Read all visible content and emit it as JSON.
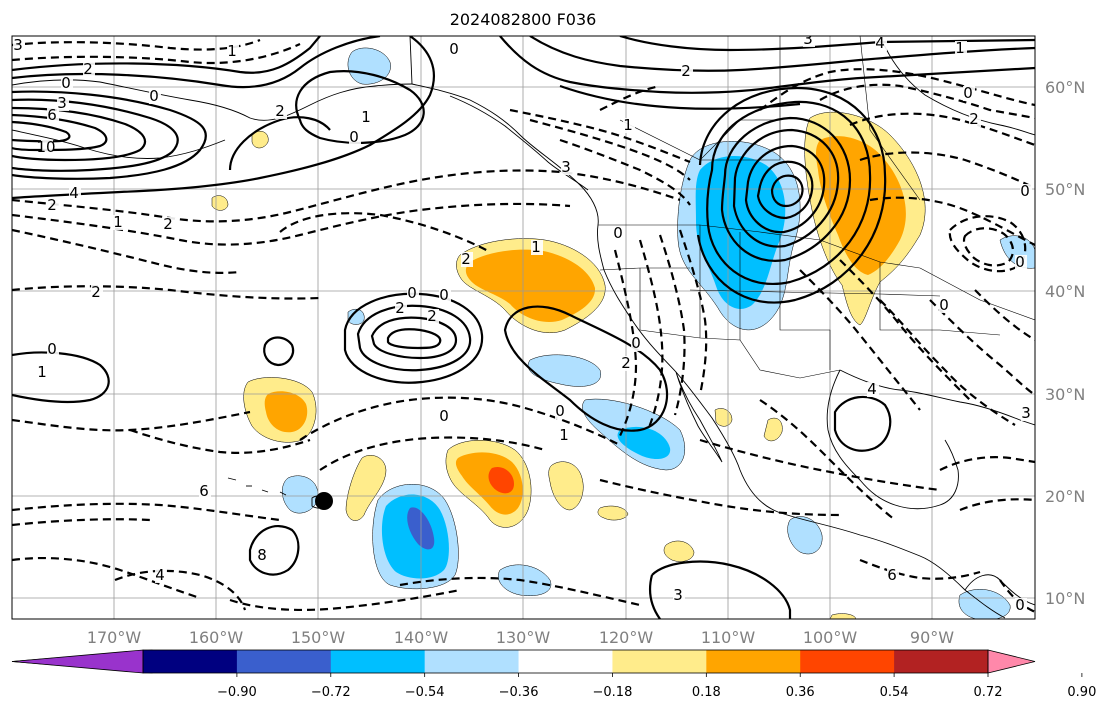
{
  "title": "2024082800 F036",
  "lon_labels": [
    "170°W",
    "160°W",
    "150°W",
    "140°W",
    "130°W",
    "120°W",
    "110°W",
    "100°W",
    "90°W"
  ],
  "lat_labels": [
    "60°N",
    "50°N",
    "40°N",
    "30°N",
    "20°N",
    "10°N"
  ],
  "colorbar": {
    "colors": [
      "#9933cc",
      "#000080",
      "#3a5fcd",
      "#00bfff",
      "#b0e0ff",
      "#ffffff",
      "#ffec8b",
      "#ffa500",
      "#ff4500",
      "#b22222",
      "#ff88aa"
    ],
    "tick_labels": [
      "−0.90",
      "−0.72",
      "−0.54",
      "−0.36",
      "−0.18",
      "0.18",
      "0.36",
      "0.54",
      "0.72",
      "0.90"
    ]
  },
  "contour_labels": [
    {
      "text": "3",
      "id": "c1"
    },
    {
      "text": "0",
      "id": "c2"
    },
    {
      "text": "2",
      "id": "c3"
    },
    {
      "text": "1",
      "id": "c4"
    },
    {
      "text": "0",
      "id": "c5"
    },
    {
      "text": "3",
      "id": "c6"
    },
    {
      "text": "6",
      "id": "c7"
    },
    {
      "text": "10",
      "id": "c8"
    },
    {
      "text": "4",
      "id": "c9"
    },
    {
      "text": "2",
      "id": "c10"
    },
    {
      "text": "1",
      "id": "c11"
    },
    {
      "text": "2",
      "id": "c12"
    },
    {
      "text": "2",
      "id": "c13"
    },
    {
      "text": "0",
      "id": "c14"
    },
    {
      "text": "1",
      "id": "c15"
    },
    {
      "text": "2",
      "id": "c16"
    },
    {
      "text": "3",
      "id": "c17"
    },
    {
      "text": "0",
      "id": "c18"
    },
    {
      "text": "1",
      "id": "c19"
    },
    {
      "text": "2",
      "id": "c20"
    },
    {
      "text": "2",
      "id": "c21"
    },
    {
      "text": "1",
      "id": "c22"
    },
    {
      "text": "0",
      "id": "c23"
    },
    {
      "text": "2",
      "id": "c24"
    },
    {
      "text": "0",
      "id": "c25"
    },
    {
      "text": "2",
      "id": "c26"
    },
    {
      "text": "0",
      "id": "c27"
    },
    {
      "text": "1",
      "id": "c28"
    },
    {
      "text": "2",
      "id": "c29"
    },
    {
      "text": "0",
      "id": "c30"
    },
    {
      "text": "0",
      "id": "c31"
    },
    {
      "text": "1",
      "id": "c32"
    },
    {
      "text": "0",
      "id": "c33"
    },
    {
      "text": "6",
      "id": "c34"
    },
    {
      "text": "8",
      "id": "c35"
    },
    {
      "text": "4",
      "id": "c36"
    },
    {
      "text": "3",
      "id": "c37"
    },
    {
      "text": "6",
      "id": "c38"
    },
    {
      "text": "4",
      "id": "c39"
    },
    {
      "text": "3",
      "id": "c40"
    },
    {
      "text": "0",
      "id": "c41"
    },
    {
      "text": "3",
      "id": "c42"
    },
    {
      "text": "4",
      "id": "c43"
    },
    {
      "text": "1",
      "id": "c44"
    },
    {
      "text": "0",
      "id": "c45"
    },
    {
      "text": "2",
      "id": "c46"
    },
    {
      "text": "0",
      "id": "c47"
    },
    {
      "text": "0",
      "id": "c48"
    },
    {
      "text": "0",
      "id": "c49"
    },
    {
      "text": "0",
      "id": "c50"
    }
  ]
}
